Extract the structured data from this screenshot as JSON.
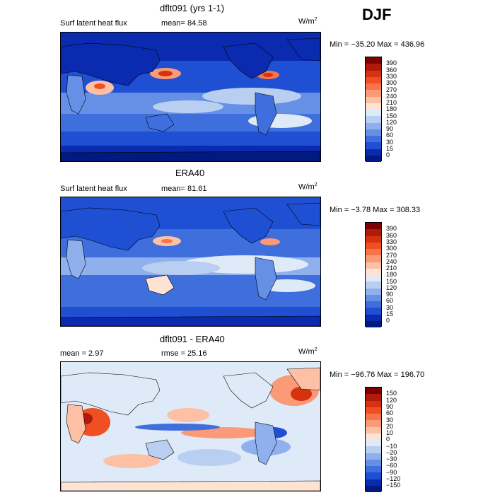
{
  "season": "DJF",
  "panels": [
    {
      "title": "dflt091 (yrs 1-1)",
      "left_text": "Surf latent heat flux",
      "stat_text": "mean=  84.58",
      "units": "W/m",
      "units_sup": "2",
      "minmax": "Min = −35.20 Max = 436.96",
      "colorbar_labels": [
        "390",
        "360",
        "330",
        "300",
        "270",
        "240",
        "210",
        "180",
        "150",
        "120",
        "90",
        "60",
        "30",
        "15",
        "0"
      ],
      "colorbar_colors": [
        "#7f0000",
        "#b01a0b",
        "#d6320f",
        "#f04f22",
        "#f7744a",
        "#fb9a76",
        "#fdc0a4",
        "#fde3d3",
        "#dfeaf8",
        "#b9cff2",
        "#8fb0ec",
        "#6590e6",
        "#3f6fdc",
        "#1f4fd3",
        "#0a2ab0",
        "#001a80"
      ],
      "chart_data": {
        "type": "heatmap",
        "title": "dflt091 (yrs 1-1)",
        "subtitle": "Surf latent heat flux",
        "mean": 84.58,
        "min": -35.2,
        "max": 436.96,
        "units": "W/m2",
        "levels": [
          0,
          15,
          30,
          60,
          90,
          120,
          150,
          180,
          210,
          240,
          270,
          300,
          330,
          360,
          390
        ]
      }
    },
    {
      "title": "ERA40",
      "left_text": "Surf latent heat flux",
      "stat_text": "mean=  81.61",
      "units": "W/m",
      "units_sup": "2",
      "minmax": "Min =  −3.78 Max = 308.33",
      "colorbar_labels": [
        "390",
        "360",
        "330",
        "300",
        "270",
        "240",
        "210",
        "180",
        "150",
        "120",
        "90",
        "60",
        "30",
        "15",
        "0"
      ],
      "colorbar_colors": [
        "#7f0000",
        "#b01a0b",
        "#d6320f",
        "#f04f22",
        "#f7744a",
        "#fb9a76",
        "#fdc0a4",
        "#fde3d3",
        "#dfeaf8",
        "#b9cff2",
        "#8fb0ec",
        "#6590e6",
        "#3f6fdc",
        "#1f4fd3",
        "#0a2ab0",
        "#001a80"
      ],
      "chart_data": {
        "type": "heatmap",
        "title": "ERA40",
        "subtitle": "Surf latent heat flux",
        "mean": 81.61,
        "min": -3.78,
        "max": 308.33,
        "units": "W/m2",
        "levels": [
          0,
          15,
          30,
          60,
          90,
          120,
          150,
          180,
          210,
          240,
          270,
          300,
          330,
          360,
          390
        ]
      }
    },
    {
      "title": "dflt091 - ERA40",
      "left_text": "mean =    2.97",
      "stat_text": "rmse =  25.16",
      "units": "W/m",
      "units_sup": "2",
      "minmax": "Min = −96.76 Max = 196.70",
      "colorbar_labels": [
        "150",
        "120",
        "90",
        "60",
        "30",
        "20",
        "10",
        "0",
        "−10",
        "−20",
        "−30",
        "−60",
        "−90",
        "−120",
        "−150"
      ],
      "colorbar_colors": [
        "#7f0000",
        "#b01a0b",
        "#d6320f",
        "#f04f22",
        "#f7744a",
        "#fb9a76",
        "#fdc0a4",
        "#fde3d3",
        "#dfeaf8",
        "#b9cff2",
        "#8fb0ec",
        "#6590e6",
        "#3f6fdc",
        "#1f4fd3",
        "#0a2ab0",
        "#001a80"
      ],
      "chart_data": {
        "type": "heatmap",
        "title": "dflt091 - ERA40",
        "mean": 2.97,
        "rmse": 25.16,
        "min": -96.76,
        "max": 196.7,
        "units": "W/m2",
        "levels": [
          -150,
          -120,
          -90,
          -60,
          -30,
          -20,
          -10,
          0,
          10,
          20,
          30,
          60,
          90,
          120,
          150
        ]
      }
    }
  ]
}
